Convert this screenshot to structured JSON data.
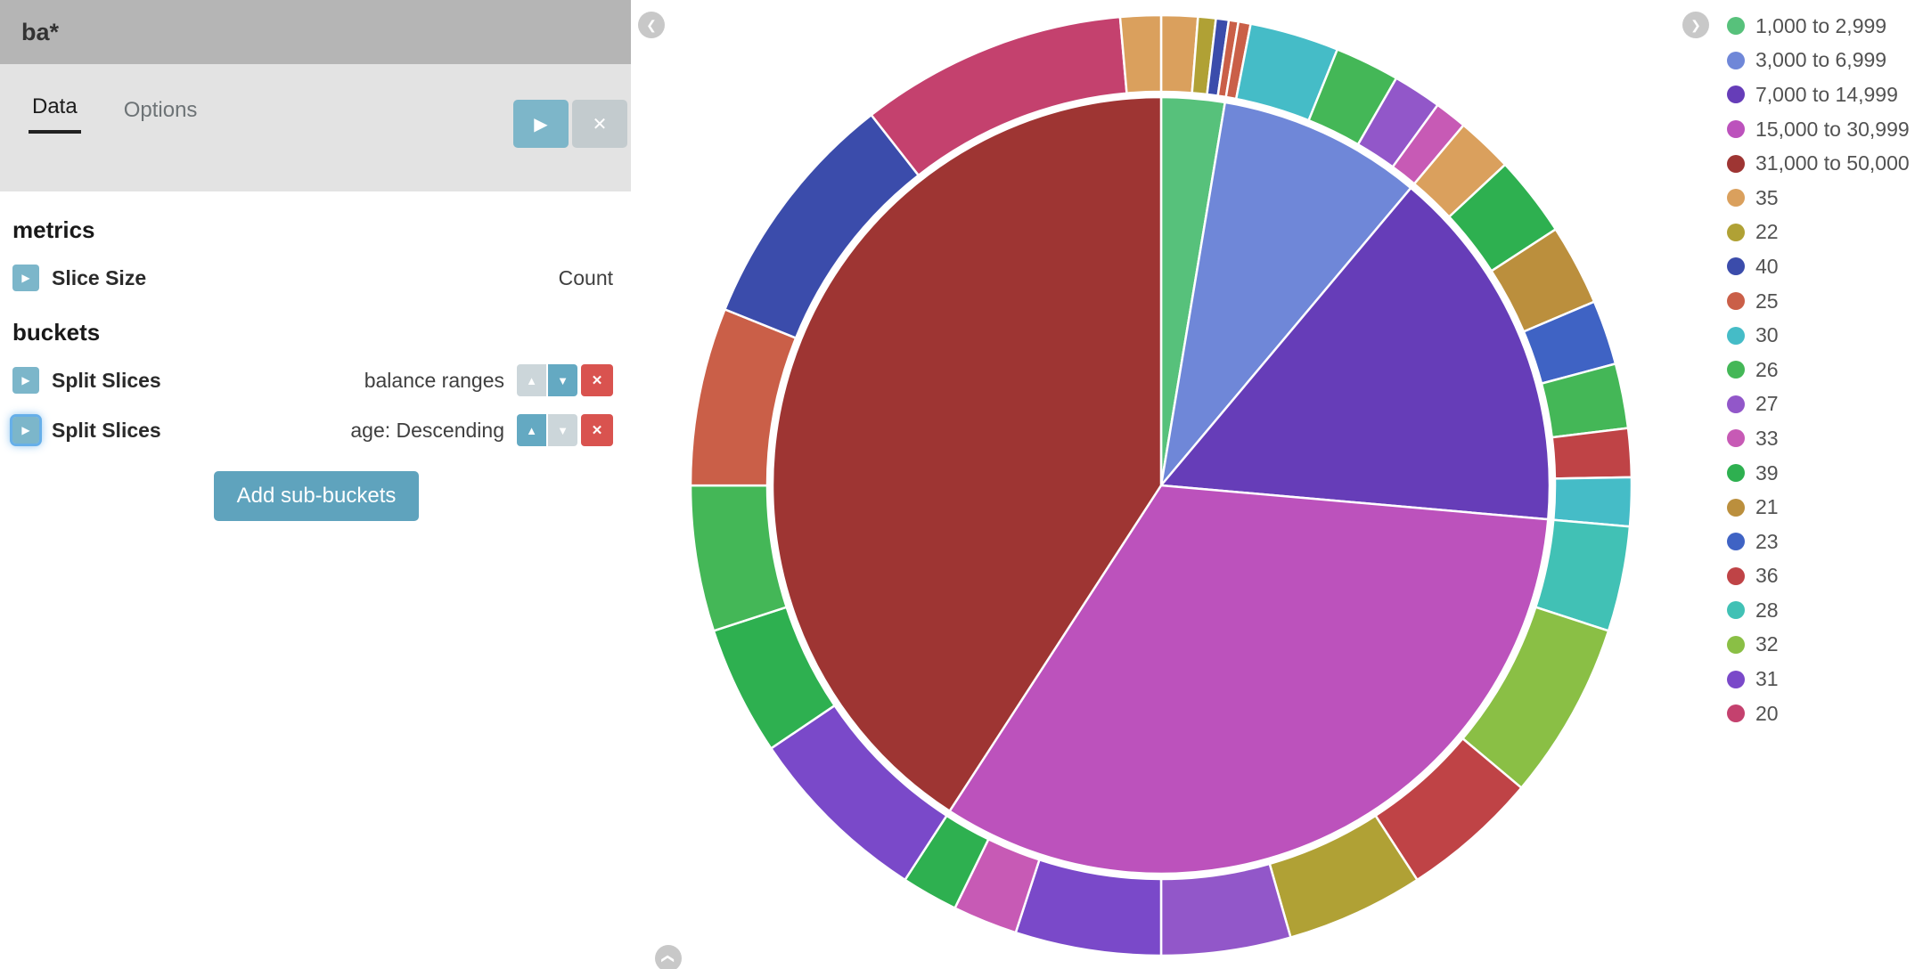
{
  "sidebar": {
    "title": "ba*",
    "tabs": [
      {
        "label": "Data",
        "active": true
      },
      {
        "label": "Options",
        "active": false
      }
    ],
    "apply_button": "play-icon",
    "discard_button": "x-icon",
    "metrics": {
      "heading": "metrics",
      "rows": [
        {
          "label": "Slice Size",
          "value": "Count"
        }
      ]
    },
    "buckets": {
      "heading": "buckets",
      "rows": [
        {
          "label": "Split Slices",
          "value": "balance ranges",
          "up_enabled": false,
          "down_enabled": true,
          "focused": false
        },
        {
          "label": "Split Slices",
          "value": "age: Descending",
          "up_enabled": true,
          "down_enabled": false,
          "focused": true
        }
      ],
      "add_button_label": "Add sub-buckets"
    }
  },
  "chart_data": {
    "type": "pie",
    "donut": false,
    "title": "",
    "slice_size_metric": "Count",
    "legend_position": "right",
    "rings": [
      {
        "name": "balance ranges",
        "slices": [
          {
            "label": "1,000 to 2,999",
            "percent": 2.63
          },
          {
            "label": "3,000 to 6,999",
            "percent": 8.48
          },
          {
            "label": "7,000 to 14,999",
            "percent": 15.28
          },
          {
            "label": "15,000 to 30,999",
            "percent": 32.76
          },
          {
            "label": "31,000 to 50,000",
            "percent": 40.83
          }
        ]
      },
      {
        "name": "age",
        "slices": [
          {
            "label": "35",
            "percent": 1.25,
            "group": "1,000 to 2,999"
          },
          {
            "label": "22",
            "percent": 0.61,
            "group": "1,000 to 2,999"
          },
          {
            "label": "40",
            "percent": 0.44,
            "group": "1,000 to 2,999"
          },
          {
            "label": "25",
            "percent": 0.33,
            "group": "1,000 to 2,999"
          },
          {
            "label": "25",
            "percent": 0.42,
            "group": "3,000 to 6,999"
          },
          {
            "label": "30",
            "percent": 3.06,
            "group": "3,000 to 6,999"
          },
          {
            "label": "26",
            "percent": 2.22,
            "group": "3,000 to 6,999"
          },
          {
            "label": "27",
            "percent": 1.67,
            "group": "3,000 to 6,999"
          },
          {
            "label": "33",
            "percent": 1.11,
            "group": "3,000 to 6,999"
          },
          {
            "label": "35",
            "percent": 1.94,
            "group": "7,000 to 14,999"
          },
          {
            "label": "39",
            "percent": 2.78,
            "group": "7,000 to 14,999"
          },
          {
            "label": "21",
            "percent": 2.78,
            "group": "7,000 to 14,999"
          },
          {
            "label": "23",
            "percent": 2.22,
            "group": "7,000 to 14,999"
          },
          {
            "label": "26",
            "percent": 2.22,
            "group": "7,000 to 14,999"
          },
          {
            "label": "36",
            "percent": 1.67,
            "group": "7,000 to 14,999"
          },
          {
            "label": "30",
            "percent": 1.67,
            "group": "7,000 to 14,999"
          },
          {
            "label": "28",
            "percent": 3.61,
            "group": "15,000 to 30,999"
          },
          {
            "label": "32",
            "percent": 6.11,
            "group": "15,000 to 30,999"
          },
          {
            "label": "36",
            "percent": 4.72,
            "group": "15,000 to 30,999"
          },
          {
            "label": "22",
            "percent": 4.72,
            "group": "15,000 to 30,999"
          },
          {
            "label": "27",
            "percent": 4.44,
            "group": "15,000 to 30,999"
          },
          {
            "label": "31",
            "percent": 5.0,
            "group": "15,000 to 30,999"
          },
          {
            "label": "33",
            "percent": 2.22,
            "group": "15,000 to 30,999"
          },
          {
            "label": "39",
            "percent": 1.94,
            "group": "15,000 to 30,999"
          },
          {
            "label": "31",
            "percent": 6.39,
            "group": "31,000 to 50,000"
          },
          {
            "label": "39",
            "percent": 4.44,
            "group": "31,000 to 50,000"
          },
          {
            "label": "26",
            "percent": 5.0,
            "group": "31,000 to 50,000"
          },
          {
            "label": "25",
            "percent": 6.11,
            "group": "31,000 to 50,000"
          },
          {
            "label": "40",
            "percent": 8.33,
            "group": "31,000 to 50,000"
          },
          {
            "label": "20",
            "percent": 9.17,
            "group": "31,000 to 50,000"
          },
          {
            "label": "35",
            "percent": 1.39,
            "group": "31,000 to 50,000"
          }
        ]
      }
    ],
    "colors": {
      "1,000 to 2,999": "#57c17b",
      "3,000 to 6,999": "#6f87d8",
      "7,000 to 14,999": "#663db8",
      "15,000 to 30,999": "#bc52bc",
      "31,000 to 50,000": "#9e3533",
      "35": "#daa05d",
      "22": "#b0a135",
      "40": "#3b4cab",
      "25": "#ca5f48",
      "30": "#45bcc7",
      "26": "#44b757",
      "27": "#9257c9",
      "33": "#c75ab5",
      "39": "#2eb050",
      "21": "#bb8f3d",
      "23": "#3f63c4",
      "36": "#bf4346",
      "28": "#41c1b5",
      "32": "#8abf45",
      "31": "#7a49c9",
      "20": "#c4416e"
    },
    "legend": [
      "1,000 to 2,999",
      "3,000 to 6,999",
      "7,000 to 14,999",
      "15,000 to 30,999",
      "31,000 to 50,000",
      "35",
      "22",
      "40",
      "25",
      "30",
      "26",
      "27",
      "33",
      "39",
      "21",
      "23",
      "36",
      "28",
      "32",
      "31",
      "20"
    ]
  }
}
